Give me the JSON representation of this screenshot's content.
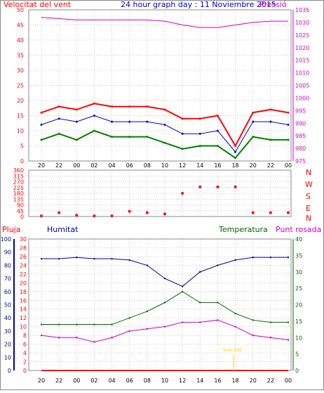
{
  "header": {
    "wind_title": "Velocitat del vent",
    "graph_title": "24 hour graph day : 11 Noviembre 2015",
    "pressure_title": "Pressió"
  },
  "colors": {
    "wind_max": "#ff0000",
    "wind_avg": "#0000cc",
    "wind_min": "#008000",
    "pressure": "#cc00cc",
    "humidity": "#000099",
    "temperature": "#006600",
    "dew_point": "#cc00cc",
    "rain": "#ff0000",
    "grid": "#999999",
    "sunrise_label": "#ffd700"
  },
  "x_tick_labels": [
    "20",
    "22",
    "00",
    "02",
    "04",
    "06",
    "08",
    "10",
    "12",
    "14",
    "16",
    "18",
    "20",
    "22",
    "00"
  ],
  "wind_direction_labels": [
    "N",
    "W",
    "S",
    "E",
    "N"
  ],
  "bottom_panel": {
    "rain_title": "Pluja",
    "humidity_title": "Humitat",
    "temperature_title": "Temperatura",
    "dewpoint_title": "Punt rosada",
    "sun_label": "Sun Set"
  },
  "chart_data": [
    {
      "type": "line",
      "title": "Velocitat del vent / Pressió",
      "xlabel": "",
      "ylabel": "Velocitat del vent",
      "ylim": [
        0,
        50
      ],
      "ylim_right": [
        975,
        1035
      ],
      "y_ticks": [
        0,
        5,
        10,
        15,
        20,
        25,
        30,
        35,
        40,
        45,
        50
      ],
      "y_ticks_right": [
        975,
        980,
        985,
        990,
        995,
        1000,
        1005,
        1010,
        1015,
        1020,
        1025,
        1030,
        1035
      ],
      "grid": true,
      "x": [
        "20",
        "22",
        "00",
        "02",
        "04",
        "06",
        "08",
        "10",
        "12",
        "14",
        "16",
        "18",
        "20",
        "22",
        "00"
      ],
      "series": [
        {
          "name": "max",
          "values": [
            16,
            18,
            17,
            19,
            18,
            18,
            18,
            17,
            14,
            14,
            15,
            5,
            16,
            17,
            16
          ]
        },
        {
          "name": "average",
          "values": [
            12,
            14,
            13,
            15,
            13,
            13,
            13,
            12,
            9,
            9,
            10,
            3,
            13,
            13,
            12
          ]
        },
        {
          "name": "min",
          "values": [
            7,
            9,
            7,
            10,
            8,
            8,
            8,
            6,
            4,
            5,
            5,
            1,
            8,
            7,
            7
          ]
        },
        {
          "name": "Pressió",
          "values": [
            1032,
            1031.5,
            1031,
            1031,
            1031,
            1031,
            1031,
            1030.5,
            1029,
            1028,
            1028,
            1029,
            1030,
            1030.5,
            1030.5
          ]
        }
      ]
    },
    {
      "type": "scatter",
      "title": "",
      "xlabel": "",
      "ylabel": "",
      "ylim": [
        0,
        360
      ],
      "y_ticks": [
        0,
        45,
        90,
        135,
        180,
        225,
        270,
        315,
        360
      ],
      "grid": true,
      "x": [
        "20",
        "22",
        "00",
        "02",
        "04",
        "06",
        "08",
        "10",
        "12",
        "14",
        "16",
        "18",
        "20",
        "22",
        "00"
      ],
      "series": [
        {
          "name": "direction",
          "values": [
            5,
            30,
            10,
            5,
            5,
            40,
            30,
            20,
            180,
            230,
            230,
            230,
            30,
            30,
            30
          ]
        }
      ]
    },
    {
      "type": "line",
      "title": "",
      "xlabel": "",
      "ylabel": "Humitat",
      "ylim": [
        0,
        100
      ],
      "ylim_temp": [
        0,
        30
      ],
      "ylim_right": [
        0,
        40
      ],
      "y_ticks_humidity": [
        0,
        10,
        20,
        30,
        40,
        50,
        60,
        70,
        80,
        90,
        100
      ],
      "y_ticks_temp": [
        0,
        2,
        4,
        6,
        8,
        10,
        12,
        14,
        16,
        18,
        20,
        22,
        24,
        26,
        28,
        30
      ],
      "y_ticks_right": [
        0,
        5,
        10,
        15,
        20,
        25,
        30,
        35,
        40
      ],
      "grid": true,
      "x": [
        "20",
        "22",
        "00",
        "02",
        "04",
        "06",
        "08",
        "10",
        "12",
        "14",
        "16",
        "18",
        "20",
        "22",
        "00"
      ],
      "series": [
        {
          "name": "Humitat",
          "values": [
            85,
            85,
            86,
            85,
            85,
            84,
            80,
            70,
            64,
            75,
            80,
            84,
            86,
            86,
            86
          ]
        },
        {
          "name": "Temperatura",
          "values": [
            10.5,
            10.5,
            10.5,
            10.5,
            10.5,
            12,
            13.5,
            15.5,
            18,
            15.5,
            15.5,
            13,
            11.5,
            11,
            11
          ]
        },
        {
          "name": "Punt rosada",
          "values": [
            8,
            7.5,
            7.5,
            6.5,
            7.5,
            9,
            9.5,
            10,
            11,
            11,
            11.5,
            10,
            8,
            7.5,
            7
          ]
        },
        {
          "name": "Pluja",
          "values": [
            0,
            0,
            0,
            0,
            0,
            0,
            0,
            0,
            0,
            0,
            0,
            0,
            0,
            0,
            0
          ]
        }
      ]
    }
  ]
}
